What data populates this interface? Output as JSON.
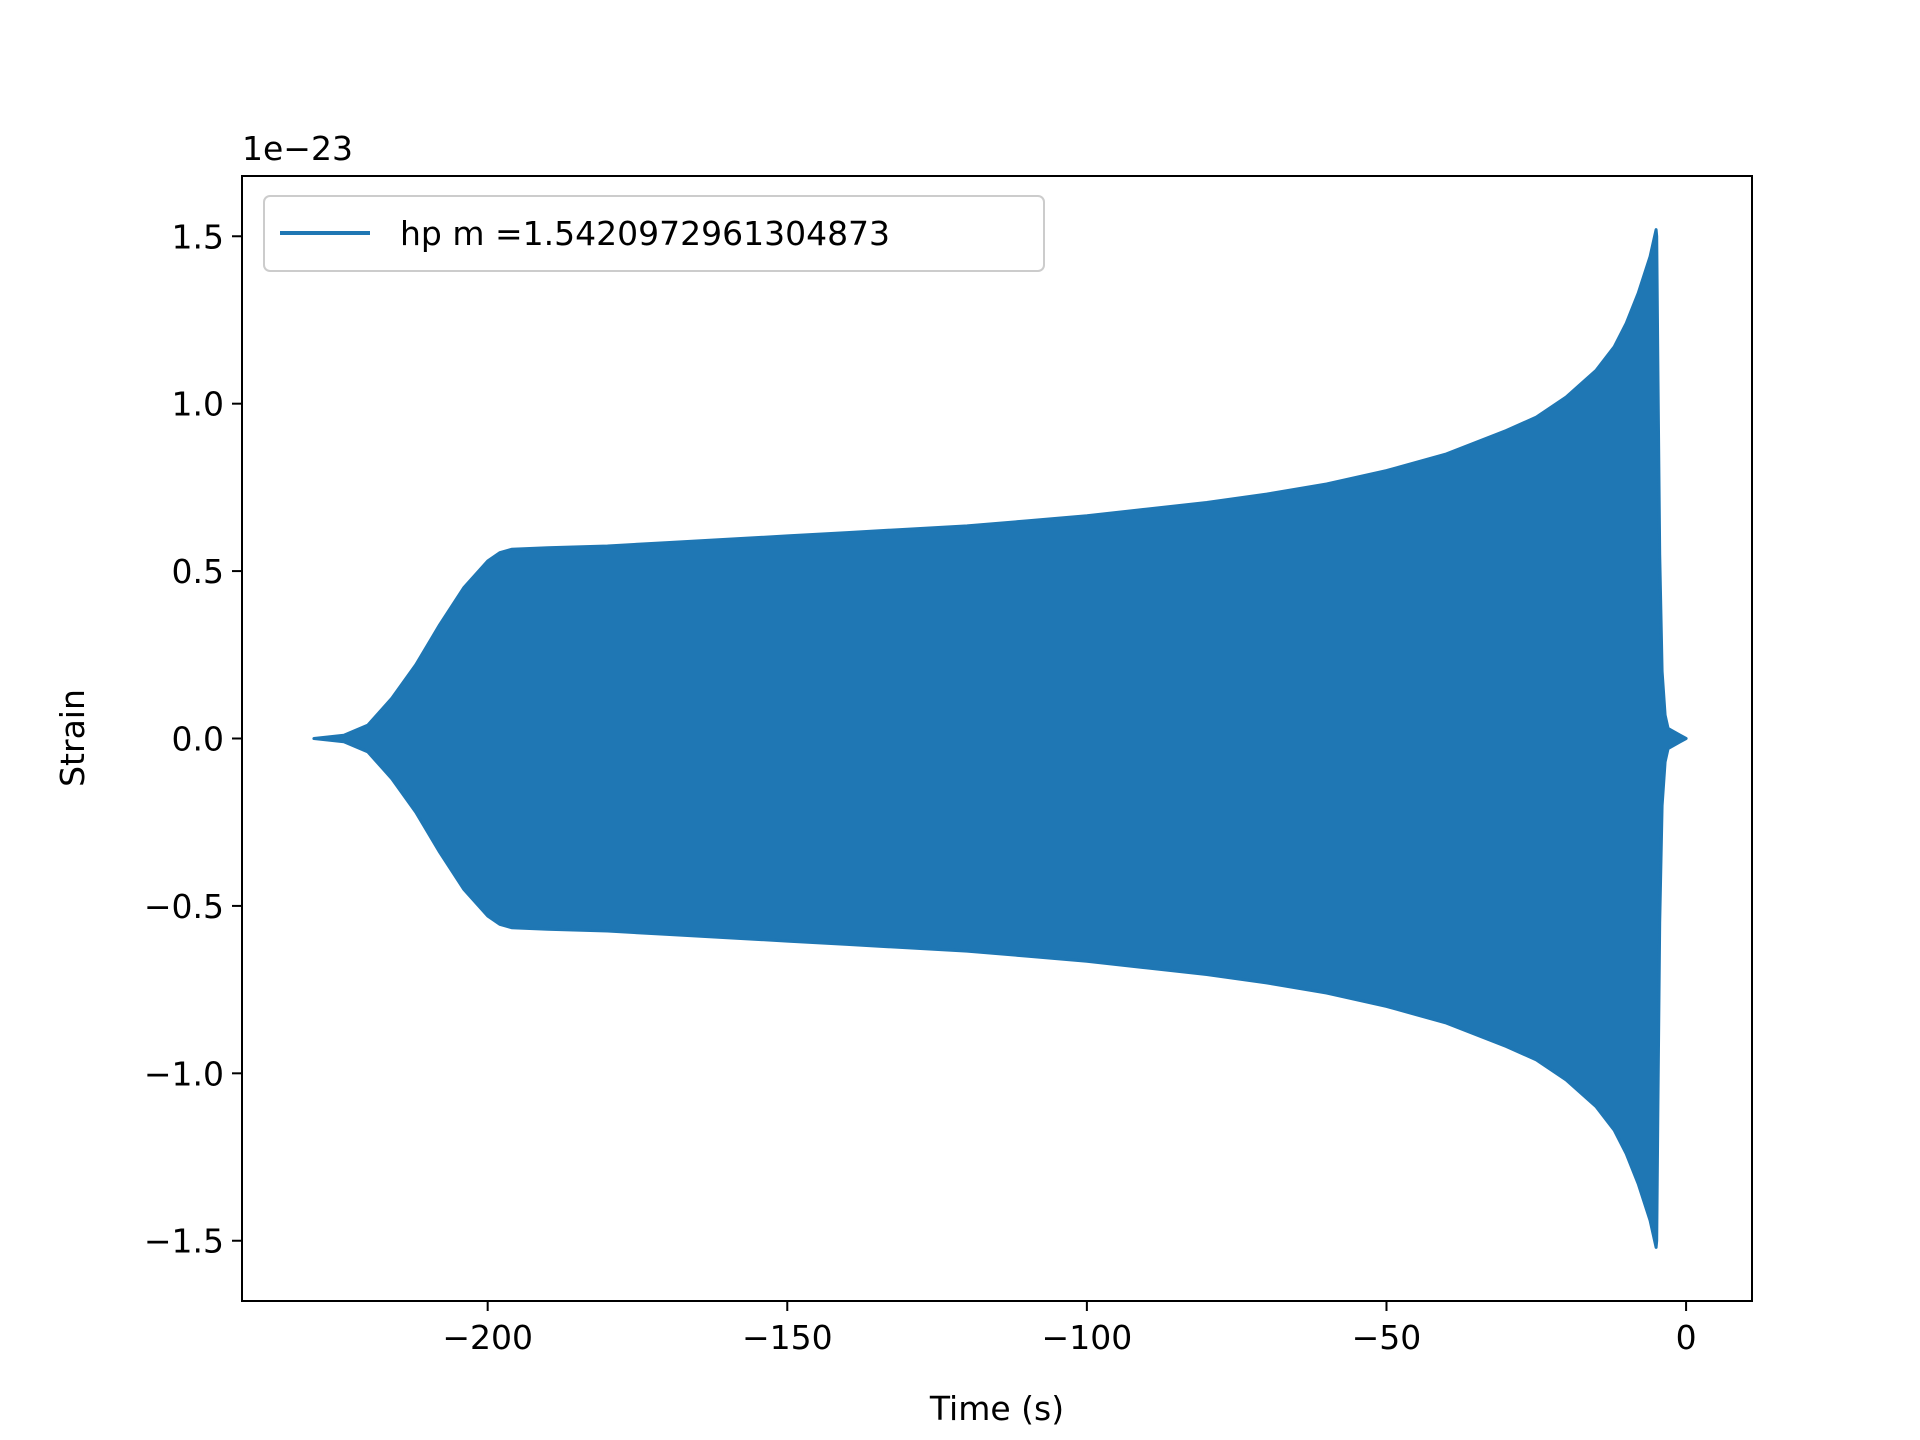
{
  "chart_data": {
    "type": "line",
    "title": "",
    "xlabel": "Time (s)",
    "ylabel": "Strain",
    "y_offset_label": "1e−23",
    "y_scale_exponent": -23,
    "xlim": [
      -241,
      11
    ],
    "ylim": [
      -1.68,
      1.68
    ],
    "x_ticks": [
      -200,
      -150,
      -100,
      -50,
      0
    ],
    "x_tick_labels": [
      "−200",
      "−150",
      "−100",
      "−50",
      "0"
    ],
    "y_ticks": [
      -1.5,
      -1.0,
      -0.5,
      0.0,
      0.5,
      1.0,
      1.5
    ],
    "y_tick_labels": [
      "−1.5",
      "−1.0",
      "−0.5",
      "0.0",
      "0.5",
      "1.0",
      "1.5"
    ],
    "grid": false,
    "legend_position": "top-left",
    "series": [
      {
        "name": "hp m =1.5420972961304873",
        "color": "#1f77b4",
        "style": "dense-oscillation",
        "envelope": {
          "x": [
            -229,
            -224,
            -220,
            -216,
            -212,
            -208,
            -204,
            -200,
            -198,
            -196,
            -190,
            -180,
            -170,
            -160,
            -150,
            -140,
            -130,
            -120,
            -110,
            -100,
            -90,
            -80,
            -70,
            -60,
            -50,
            -40,
            -30,
            -25,
            -20,
            -15,
            -12,
            -10,
            -8,
            -6,
            -5,
            -4.9,
            -4.7,
            -4.4,
            -4,
            -3.5,
            -3,
            -2,
            -1,
            0
          ],
          "upper": [
            0.0,
            0.01,
            0.04,
            0.12,
            0.22,
            0.34,
            0.45,
            0.53,
            0.555,
            0.565,
            0.57,
            0.575,
            0.585,
            0.595,
            0.605,
            0.615,
            0.625,
            0.635,
            0.65,
            0.665,
            0.685,
            0.705,
            0.73,
            0.76,
            0.8,
            0.85,
            0.92,
            0.96,
            1.02,
            1.1,
            1.17,
            1.24,
            1.33,
            1.44,
            1.52,
            1.5,
            1.1,
            0.55,
            0.2,
            0.07,
            0.03,
            0.02,
            0.01,
            0.0
          ],
          "lower": [
            0.0,
            -0.01,
            -0.04,
            -0.12,
            -0.22,
            -0.34,
            -0.45,
            -0.53,
            -0.555,
            -0.565,
            -0.57,
            -0.575,
            -0.585,
            -0.595,
            -0.605,
            -0.615,
            -0.625,
            -0.635,
            -0.65,
            -0.665,
            -0.685,
            -0.705,
            -0.73,
            -0.76,
            -0.8,
            -0.85,
            -0.92,
            -0.96,
            -1.02,
            -1.1,
            -1.17,
            -1.24,
            -1.33,
            -1.44,
            -1.52,
            -1.5,
            -1.1,
            -0.55,
            -0.2,
            -0.07,
            -0.03,
            -0.02,
            -0.01,
            0.0
          ]
        }
      }
    ]
  }
}
